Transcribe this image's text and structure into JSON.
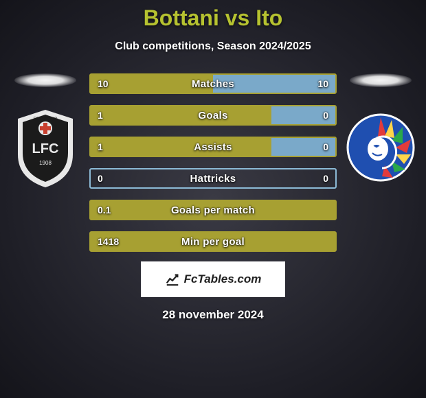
{
  "title": "Bottani vs Ito",
  "subtitle": "Club competitions, Season 2024/2025",
  "date": "28 november 2024",
  "footer_brand": "FcTables.com",
  "colors": {
    "accent_olive": "#a7a032",
    "accent_blue": "#7aa9c9",
    "border_blue": "#8cbad6",
    "title_color": "#b6c230",
    "text_white": "#ffffff"
  },
  "left_team": {
    "name": "FC Lugano",
    "crest_bg": "#1b1b1b",
    "crest_ring": "#e8e8e8",
    "crest_cross": "#c8402f"
  },
  "right_team": {
    "name": "KAA Gent",
    "crest_bg": "#1f4fb0",
    "crest_feather_colors": [
      "#e23b3b",
      "#ffd54a",
      "#2aa84a",
      "#1f4fb0"
    ]
  },
  "bars": [
    {
      "label": "Matches",
      "left_value": "10",
      "right_value": "10",
      "left_width_pct": 50,
      "right_width_pct": 50,
      "left_color": "#a7a032",
      "right_color": "#7aa9c9",
      "border_color": "#a7a032"
    },
    {
      "label": "Goals",
      "left_value": "1",
      "right_value": "0",
      "left_width_pct": 74,
      "right_width_pct": 26,
      "left_color": "#a7a032",
      "right_color": "#7aa9c9",
      "border_color": "#a7a032"
    },
    {
      "label": "Assists",
      "left_value": "1",
      "right_value": "0",
      "left_width_pct": 74,
      "right_width_pct": 26,
      "left_color": "#a7a032",
      "right_color": "#7aa9c9",
      "border_color": "#a7a032"
    },
    {
      "label": "Hattricks",
      "left_value": "0",
      "right_value": "0",
      "left_width_pct": 0,
      "right_width_pct": 0,
      "left_color": "#a7a032",
      "right_color": "#7aa9c9",
      "border_color": "#8cbad6"
    },
    {
      "label": "Goals per match",
      "left_value": "0.1",
      "right_value": "",
      "left_width_pct": 100,
      "right_width_pct": 0,
      "left_color": "#a7a032",
      "right_color": "#7aa9c9",
      "border_color": "#a7a032"
    },
    {
      "label": "Min per goal",
      "left_value": "1418",
      "right_value": "",
      "left_width_pct": 100,
      "right_width_pct": 0,
      "left_color": "#a7a032",
      "right_color": "#7aa9c9",
      "border_color": "#a7a032"
    }
  ]
}
